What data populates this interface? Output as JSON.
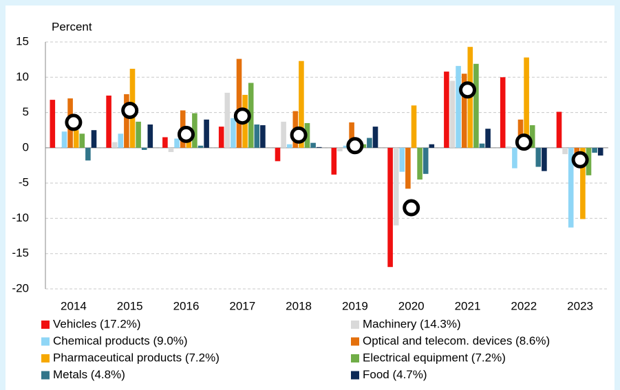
{
  "chart_data": {
    "type": "bar",
    "y_label": "Percent",
    "categories": [
      "2014",
      "2015",
      "2016",
      "2017",
      "2018",
      "2019",
      "2020",
      "2021",
      "2022",
      "2023"
    ],
    "series": [
      {
        "name": "Vehicles (17.2%)",
        "color": "#f01010",
        "values": [
          6.8,
          7.4,
          1.5,
          3.0,
          -1.9,
          -3.8,
          -16.9,
          10.8,
          10.0,
          5.1
        ]
      },
      {
        "name": "Machinery (14.3%)",
        "color": "#d9d9d9",
        "values": [
          0.1,
          0.8,
          -0.6,
          7.8,
          3.7,
          -0.5,
          -11.0,
          9.5,
          0.2,
          -0.9
        ]
      },
      {
        "name": "Chemical products (9.0%)",
        "color": "#8fd6f6",
        "values": [
          2.3,
          2.0,
          1.3,
          4.2,
          0.5,
          0.3,
          -3.4,
          11.6,
          -2.9,
          -11.3
        ]
      },
      {
        "name": "Optical and telecom. devices (8.6%)",
        "color": "#e4700c",
        "values": [
          7.0,
          7.6,
          5.3,
          12.6,
          5.2,
          3.6,
          -5.8,
          10.5,
          4.0,
          -1.5
        ]
      },
      {
        "name": "Pharmaceutical products (7.2%)",
        "color": "#f6a800",
        "values": [
          2.5,
          11.2,
          2.5,
          7.5,
          12.3,
          0.8,
          6.0,
          14.3,
          12.8,
          -10.1
        ]
      },
      {
        "name": "Electrical equipment (7.2%)",
        "color": "#70ad47",
        "values": [
          2.0,
          3.7,
          4.9,
          9.2,
          3.5,
          0.5,
          -4.5,
          11.9,
          3.2,
          -3.9
        ]
      },
      {
        "name": "Metals (4.8%)",
        "color": "#31758a",
        "values": [
          -1.8,
          -0.3,
          0.3,
          3.3,
          0.7,
          1.4,
          -3.7,
          0.6,
          -2.7,
          -0.7
        ]
      },
      {
        "name": "Food (4.7%)",
        "color": "#0d2a56",
        "values": [
          2.5,
          3.3,
          4.0,
          3.2,
          0.1,
          3.0,
          0.5,
          2.7,
          -3.3,
          -1.1
        ]
      }
    ],
    "marker_values": [
      3.6,
      5.3,
      1.9,
      4.5,
      1.8,
      0.3,
      -8.5,
      8.2,
      0.8,
      -1.7
    ],
    "ylim": [
      -20,
      15
    ],
    "yticks": [
      -20,
      -15,
      -10,
      -5,
      0,
      5,
      10,
      15
    ],
    "grid": true
  }
}
